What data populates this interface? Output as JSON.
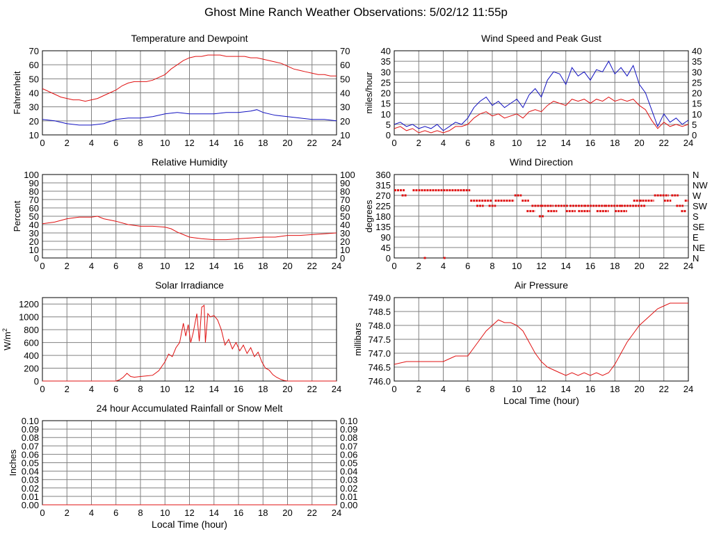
{
  "page_title": "Ghost Mine Ranch Weather Observations: 5/02/12 11:55p",
  "colors": {
    "red": "#e01010",
    "blue": "#1010c0",
    "grid": "#808080"
  },
  "chart_data": [
    {
      "id": "temp",
      "type": "line",
      "title": "Temperature and Dewpoint",
      "xlabel": "",
      "ylabel": "Fahrenheit",
      "xlim": [
        0,
        24
      ],
      "ylim": [
        10,
        70
      ],
      "xticks": [
        0,
        2,
        4,
        6,
        8,
        10,
        12,
        14,
        16,
        18,
        20,
        22,
        24
      ],
      "yticks": [
        10,
        20,
        30,
        40,
        50,
        60,
        70
      ],
      "yticks_right": [
        10,
        20,
        30,
        40,
        50,
        60,
        70
      ],
      "grid": true,
      "series": [
        {
          "color": "#e01010",
          "x": [
            0,
            0.5,
            1,
            1.5,
            2,
            2.5,
            3,
            3.5,
            4,
            4.5,
            5,
            5.5,
            6,
            6.5,
            7,
            7.5,
            8,
            8.5,
            9,
            9.5,
            10,
            10.5,
            11,
            11.5,
            12,
            12.5,
            13,
            13.5,
            14,
            14.5,
            15,
            15.5,
            16,
            16.5,
            17,
            17.5,
            18,
            18.5,
            19,
            19.5,
            20,
            20.5,
            21,
            21.5,
            22,
            22.5,
            23,
            23.5,
            24
          ],
          "y": [
            43,
            41,
            39,
            37,
            36,
            35,
            35,
            34,
            35,
            36,
            38,
            40,
            42,
            45,
            47,
            48,
            48,
            48,
            49,
            51,
            53,
            57,
            60,
            63,
            65,
            66,
            66,
            67,
            67,
            67,
            66,
            66,
            66,
            66,
            65,
            65,
            64,
            63,
            62,
            61,
            59,
            57,
            56,
            55,
            54,
            53,
            53,
            52,
            52
          ]
        },
        {
          "color": "#1010c0",
          "x": [
            0,
            1,
            2,
            3,
            4,
            5,
            6,
            7,
            8,
            9,
            10,
            11,
            12,
            13,
            14,
            15,
            16,
            17,
            17.5,
            18,
            19,
            20,
            21,
            22,
            23,
            24
          ],
          "y": [
            21,
            20,
            18,
            17,
            17,
            18,
            21,
            22,
            22,
            23,
            25,
            26,
            25,
            25,
            25,
            26,
            26,
            27,
            28,
            26,
            24,
            23,
            22,
            21,
            21,
            20
          ]
        }
      ]
    },
    {
      "id": "wind",
      "type": "line",
      "title": "Wind Speed and Peak Gust",
      "xlabel": "",
      "ylabel": "miles/hour",
      "xlim": [
        0,
        24
      ],
      "ylim": [
        0,
        40
      ],
      "xticks": [
        0,
        2,
        4,
        6,
        8,
        10,
        12,
        14,
        16,
        18,
        20,
        22,
        24
      ],
      "yticks": [
        0,
        5,
        10,
        15,
        20,
        25,
        30,
        35,
        40
      ],
      "yticks_right": [
        0,
        5,
        10,
        15,
        20,
        25,
        30,
        35,
        40
      ],
      "grid": true,
      "series": [
        {
          "color": "#1010c0",
          "x": [
            0,
            0.5,
            1,
            1.5,
            2,
            2.5,
            3,
            3.5,
            4,
            4.5,
            5,
            5.5,
            6,
            6.5,
            7,
            7.5,
            8,
            8.5,
            9,
            9.5,
            10,
            10.5,
            11,
            11.5,
            12,
            12.5,
            13,
            13.5,
            14,
            14.5,
            15,
            15.5,
            16,
            16.5,
            17,
            17.5,
            18,
            18.5,
            19,
            19.5,
            20,
            20.5,
            21,
            21.5,
            22,
            22.5,
            23,
            23.5,
            24
          ],
          "y": [
            5,
            6,
            4,
            5,
            3,
            4,
            3,
            5,
            2,
            4,
            6,
            5,
            8,
            13,
            16,
            18,
            14,
            16,
            13,
            15,
            17,
            13,
            19,
            22,
            18,
            26,
            30,
            29,
            24,
            32,
            28,
            30,
            26,
            31,
            30,
            35,
            29,
            32,
            28,
            33,
            24,
            20,
            12,
            4,
            10,
            6,
            8,
            5,
            7
          ]
        },
        {
          "color": "#e01010",
          "x": [
            0,
            0.5,
            1,
            1.5,
            2,
            2.5,
            3,
            3.5,
            4,
            4.5,
            5,
            5.5,
            6,
            6.5,
            7,
            7.5,
            8,
            8.5,
            9,
            9.5,
            10,
            10.5,
            11,
            11.5,
            12,
            12.5,
            13,
            13.5,
            14,
            14.5,
            15,
            15.5,
            16,
            16.5,
            17,
            17.5,
            18,
            18.5,
            19,
            19.5,
            20,
            20.5,
            21,
            21.5,
            22,
            22.5,
            23,
            23.5,
            24
          ],
          "y": [
            3,
            4,
            2,
            3,
            1,
            2,
            1,
            2,
            1,
            2,
            4,
            4,
            5,
            8,
            10,
            11,
            9,
            10,
            8,
            9,
            10,
            8,
            11,
            12,
            11,
            14,
            16,
            15,
            14,
            17,
            16,
            17,
            15,
            17,
            16,
            18,
            16,
            17,
            16,
            17,
            14,
            12,
            7,
            3,
            6,
            4,
            5,
            4,
            5
          ]
        }
      ]
    },
    {
      "id": "rh",
      "type": "line",
      "title": "Relative Humidity",
      "xlabel": "",
      "ylabel": "Percent",
      "xlim": [
        0,
        24
      ],
      "ylim": [
        0,
        100
      ],
      "xticks": [
        0,
        2,
        4,
        6,
        8,
        10,
        12,
        14,
        16,
        18,
        20,
        22,
        24
      ],
      "yticks": [
        0,
        10,
        20,
        30,
        40,
        50,
        60,
        70,
        80,
        90,
        100
      ],
      "yticks_right": [
        0,
        10,
        20,
        30,
        40,
        50,
        60,
        70,
        80,
        90,
        100
      ],
      "grid": true,
      "series": [
        {
          "color": "#e01010",
          "x": [
            0,
            1,
            2,
            3,
            4,
            4.5,
            5,
            6,
            7,
            8,
            9,
            10,
            10.5,
            11,
            11.5,
            12,
            13,
            14,
            15,
            16,
            17,
            18,
            19,
            20,
            21,
            22,
            23,
            24
          ],
          "y": [
            41,
            43,
            47,
            49,
            49,
            50,
            47,
            44,
            40,
            38,
            38,
            37,
            35,
            31,
            28,
            25,
            23,
            22,
            22,
            23,
            24,
            25,
            25,
            27,
            27,
            28,
            29,
            30
          ]
        }
      ]
    },
    {
      "id": "dir",
      "type": "scatter",
      "title": "Wind Direction",
      "xlabel": "",
      "ylabel": "degrees",
      "xlim": [
        0,
        24
      ],
      "ylim": [
        0,
        360
      ],
      "xticks": [
        0,
        2,
        4,
        6,
        8,
        10,
        12,
        14,
        16,
        18,
        20,
        22,
        24
      ],
      "yticks": [
        0,
        45,
        90,
        135,
        180,
        225,
        270,
        315,
        360
      ],
      "yticks_right_labels": [
        "N",
        "NE",
        "E",
        "SE",
        "S",
        "SW",
        "W",
        "NW",
        "N"
      ],
      "grid": true,
      "series": [
        {
          "color": "#e01010",
          "segments": [
            [
              0,
              0.9,
              292
            ],
            [
              0.6,
              1,
              270
            ],
            [
              1.5,
              5.8,
              292
            ],
            [
              5.6,
              6.2,
              292
            ],
            [
              6.2,
              8,
              247
            ],
            [
              6.7,
              7.3,
              225
            ],
            [
              7.7,
              8.3,
              225
            ],
            [
              8.2,
              9.8,
              247
            ],
            [
              9.8,
              10.4,
              270
            ],
            [
              10.4,
              11,
              247
            ],
            [
              10.8,
              11.5,
              202
            ],
            [
              11.2,
              12,
              225
            ],
            [
              11.8,
              12.2,
              180
            ],
            [
              12,
              13,
              225
            ],
            [
              12.5,
              13.3,
              202
            ],
            [
              13.1,
              14.2,
              225
            ],
            [
              14,
              14.8,
              202
            ],
            [
              14.3,
              15.5,
              225
            ],
            [
              15,
              16,
              202
            ],
            [
              15.5,
              17.2,
              225
            ],
            [
              16.5,
              17.5,
              202
            ],
            [
              17.2,
              18.5,
              225
            ],
            [
              18,
              19,
              202
            ],
            [
              18.5,
              20.5,
              225
            ],
            [
              19.5,
              20.2,
              247
            ],
            [
              20,
              21.2,
              247
            ],
            [
              21.2,
              22.4,
              270
            ],
            [
              22,
              22.6,
              247
            ],
            [
              22.6,
              23.2,
              270
            ],
            [
              23,
              23.6,
              225
            ],
            [
              23.4,
              23.8,
              202
            ],
            [
              23.7,
              24,
              247
            ]
          ],
          "points": [
            [
              2.5,
              0
            ],
            [
              4.1,
              0
            ]
          ]
        }
      ]
    },
    {
      "id": "solar",
      "type": "line",
      "title": "Solar Irradiance",
      "xlabel": "",
      "ylabel": "W/m",
      "ylabel_sup": "2",
      "xlim": [
        0,
        24
      ],
      "ylim": [
        0,
        1300
      ],
      "xticks": [
        0,
        2,
        4,
        6,
        8,
        10,
        12,
        14,
        16,
        18,
        20,
        22,
        24
      ],
      "yticks": [
        0,
        200,
        400,
        600,
        800,
        1000,
        1200
      ],
      "grid": true,
      "series": [
        {
          "color": "#e01010",
          "x": [
            0,
            6,
            6.3,
            6.6,
            6.9,
            7.2,
            7.5,
            8,
            8.5,
            9,
            9.5,
            10,
            10.3,
            10.6,
            10.9,
            11.2,
            11.5,
            11.7,
            11.9,
            12.1,
            12.3,
            12.6,
            12.8,
            13,
            13.2,
            13.3,
            13.5,
            13.7,
            14,
            14.3,
            14.6,
            14.9,
            15.2,
            15.5,
            15.8,
            16.1,
            16.4,
            16.7,
            17,
            17.3,
            17.6,
            17.9,
            18.2,
            18.5,
            18.8,
            19.1,
            19.4,
            19.7,
            20,
            21,
            24
          ],
          "y": [
            0,
            0,
            20,
            60,
            120,
            70,
            60,
            70,
            80,
            90,
            160,
            300,
            420,
            380,
            520,
            600,
            900,
            700,
            880,
            600,
            750,
            1050,
            620,
            1150,
            1180,
            600,
            1050,
            1000,
            1020,
            950,
            800,
            560,
            650,
            500,
            600,
            470,
            560,
            430,
            520,
            380,
            450,
            300,
            200,
            170,
            100,
            60,
            30,
            10,
            0,
            0,
            0
          ]
        }
      ]
    },
    {
      "id": "pressure",
      "type": "line",
      "title": "Air Pressure",
      "xlabel": "Local Time (hour)",
      "ylabel": "millibars",
      "xlim": [
        0,
        24
      ],
      "ylim": [
        746.0,
        749.0
      ],
      "xticks": [
        0,
        2,
        4,
        6,
        8,
        10,
        12,
        14,
        16,
        18,
        20,
        22,
        24
      ],
      "yticks": [
        746.0,
        746.5,
        747.0,
        747.5,
        748.0,
        748.5,
        749.0
      ],
      "grid": true,
      "series": [
        {
          "color": "#e01010",
          "x": [
            0,
            1,
            2,
            3,
            4,
            4.5,
            5,
            5.5,
            6,
            6.5,
            7,
            7.5,
            8,
            8.5,
            9,
            9.5,
            10,
            10.5,
            11,
            11.5,
            12,
            12.5,
            13,
            13.5,
            14,
            14.5,
            15,
            15.5,
            16,
            16.5,
            17,
            17.5,
            18,
            18.5,
            19,
            19.5,
            20,
            20.5,
            21,
            21.5,
            22,
            22.5,
            23,
            23.5,
            24
          ],
          "y": [
            746.6,
            746.7,
            746.7,
            746.7,
            746.7,
            746.8,
            746.9,
            746.9,
            746.9,
            747.2,
            747.5,
            747.8,
            748.0,
            748.2,
            748.1,
            748.1,
            748.0,
            747.8,
            747.4,
            747.0,
            746.7,
            746.5,
            746.4,
            746.3,
            746.2,
            746.3,
            746.2,
            746.3,
            746.2,
            746.3,
            746.2,
            746.3,
            746.6,
            747.0,
            747.4,
            747.7,
            748.0,
            748.2,
            748.4,
            748.6,
            748.7,
            748.8,
            748.8,
            748.8,
            748.8
          ]
        }
      ]
    },
    {
      "id": "rain",
      "type": "line",
      "title": "24 hour Accumulated Rainfall or Snow Melt",
      "xlabel": "Local Time (hour)",
      "ylabel": "Inches",
      "xlim": [
        0,
        24
      ],
      "ylim": [
        0,
        0.1
      ],
      "xticks": [
        0,
        2,
        4,
        6,
        8,
        10,
        12,
        14,
        16,
        18,
        20,
        22,
        24
      ],
      "yticks": [
        0.0,
        0.01,
        0.02,
        0.03,
        0.04,
        0.05,
        0.06,
        0.07,
        0.08,
        0.09,
        0.1
      ],
      "yticks_right": [
        0.0,
        0.01,
        0.02,
        0.03,
        0.04,
        0.05,
        0.06,
        0.07,
        0.08,
        0.09,
        0.1
      ],
      "ytick_decimals": 2,
      "grid": true,
      "series": [
        {
          "color": "#e01010",
          "x": [
            0,
            24
          ],
          "y": [
            0,
            0
          ]
        }
      ]
    }
  ]
}
